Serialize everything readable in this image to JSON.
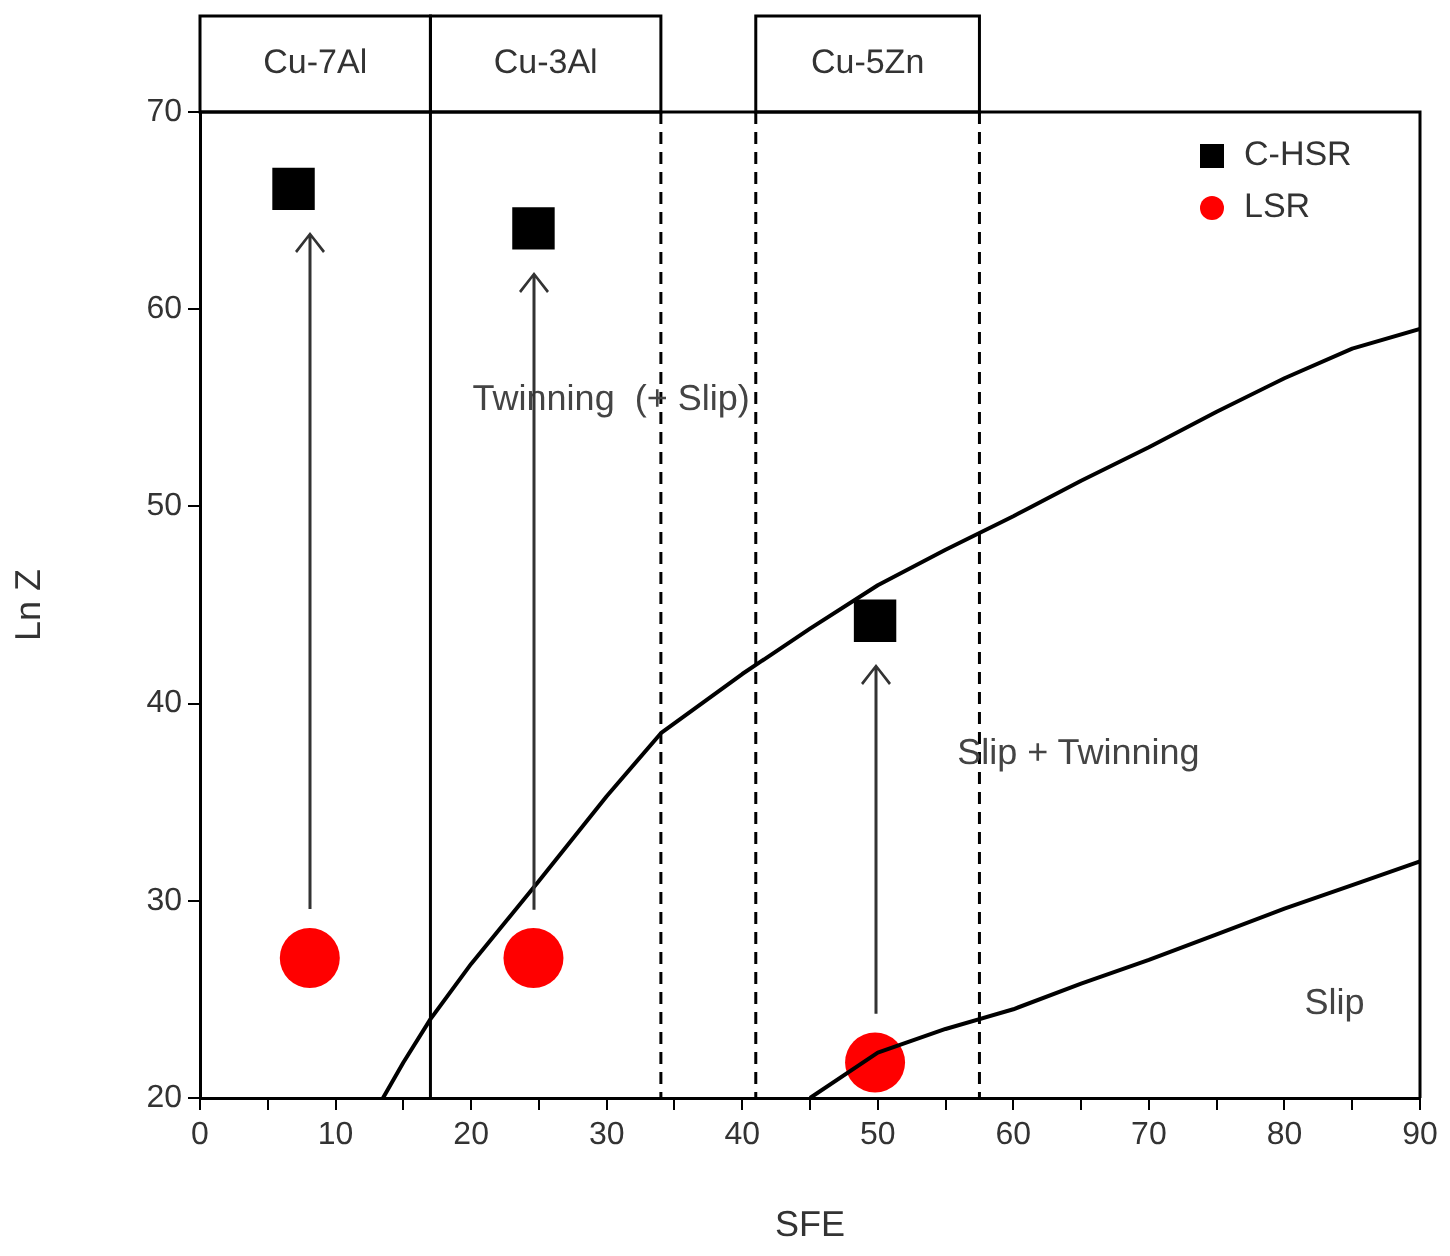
{
  "chart_data": {
    "type": "line",
    "xlabel": "SFE",
    "ylabel": "Ln Z",
    "xlim": [
      0,
      90
    ],
    "ylim": [
      20,
      70
    ],
    "xticks": [
      0,
      {
        "value": 5,
        "label": null
      },
      10,
      {
        "value": 15,
        "label": null
      },
      20,
      {
        "value": 25,
        "label": null
      },
      30,
      {
        "value": 35,
        "label": null
      },
      40,
      {
        "value": 45,
        "label": null
      },
      50,
      {
        "value": 55,
        "label": null
      },
      60,
      {
        "value": 65,
        "label": null
      },
      70,
      {
        "value": 75,
        "label": null
      },
      80,
      {
        "value": 85,
        "label": null
      },
      90
    ],
    "yticks": [
      20,
      30,
      40,
      50,
      60,
      70
    ],
    "grid": false,
    "legend": "top right",
    "series": [
      {
        "color": "#000000",
        "marker": "none",
        "x": [
          13.5,
          15,
          17,
          20,
          25,
          30,
          34,
          40,
          45,
          50,
          55,
          60,
          65,
          70,
          75,
          80,
          85,
          90
        ],
        "values": [
          20,
          21.8,
          24,
          26.8,
          31,
          35.3,
          38.5,
          41.5,
          43.8,
          46,
          47.8,
          49.5,
          51.3,
          53,
          54.8,
          56.5,
          58,
          59
        ]
      },
      {
        "color": "#000000",
        "marker": "none",
        "x": [
          45,
          50,
          55,
          60,
          65,
          70,
          75,
          80,
          85,
          90
        ],
        "values": [
          20,
          22.3,
          23.5,
          24.5,
          25.8,
          27,
          28.3,
          29.6,
          30.8,
          32
        ]
      },
      {
        "type": "scatter",
        "name": "C-HSR",
        "color": "#000000",
        "marker": "square",
        "x": [
          6.9,
          24.6,
          49.8
        ],
        "values": [
          66.1,
          64.1,
          44.2
        ]
      },
      {
        "type": "scatter",
        "name": "LSR",
        "color": "#ff0000",
        "marker": "circle",
        "x": [
          8.1,
          24.6,
          49.8
        ],
        "values": [
          27.1,
          27.1,
          21.8
        ]
      }
    ],
    "ref_lines": [
      {
        "axis": "x",
        "value": 17,
        "line_style": "solid"
      },
      {
        "axis": "x",
        "value": 34,
        "line_style": "dashed"
      },
      {
        "axis": "x",
        "value": 41,
        "line_style": "dashed"
      },
      {
        "axis": "x",
        "value": 57.5,
        "line_style": "dashed"
      }
    ],
    "annotations": [
      "Twinning  (+ Slip)",
      "Slip + Twinning",
      "Slip",
      "Cu-7Al",
      "Cu-3Al",
      "Cu-5Zn"
    ]
  }
}
